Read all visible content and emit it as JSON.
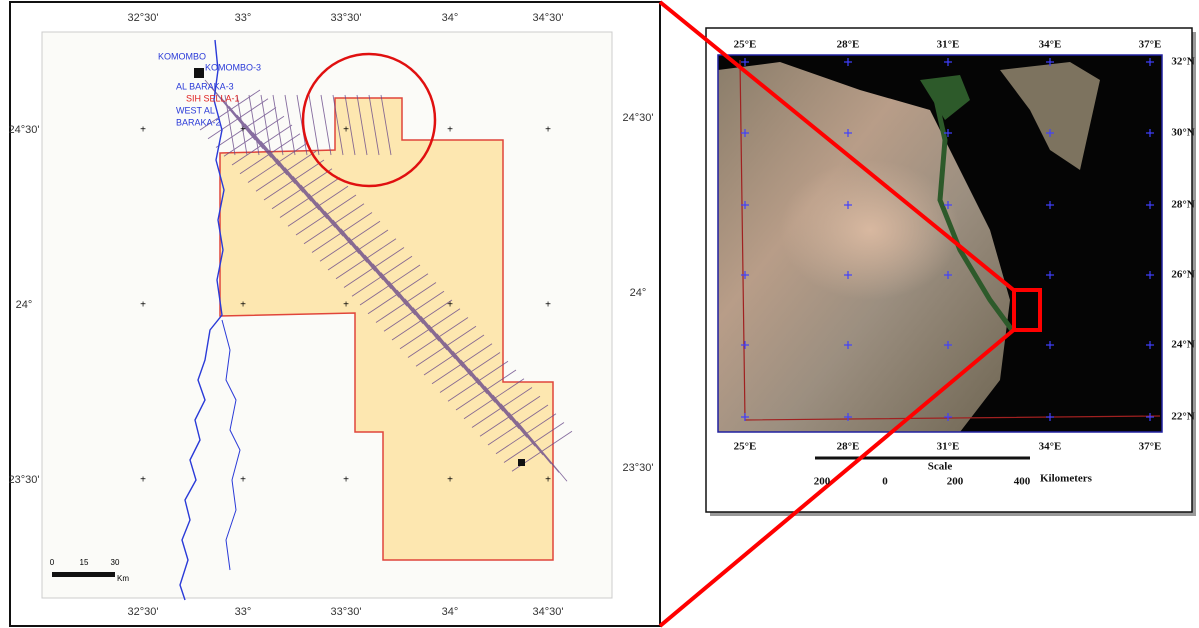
{
  "left_map": {
    "top_labels": [
      "32°30'",
      "33°",
      "33°30'",
      "34°",
      "34°30'"
    ],
    "bottom_labels": [
      "32°30'",
      "33°",
      "33°30'",
      "34°",
      "34°30'"
    ],
    "left_labels": [
      "24°30'",
      "24°",
      "23°30'"
    ],
    "right_labels": [
      "24°30'",
      "24°",
      "23°30'"
    ],
    "places": [
      {
        "label": "KOMOMBO",
        "color": "blue"
      },
      {
        "label": "KOMOMBO-3",
        "color": "blue"
      },
      {
        "label": "AL BARAKA-3",
        "color": "blue"
      },
      {
        "label": "SIH SELLA-1",
        "color": "red"
      },
      {
        "label": "WEST AL",
        "color": "blue"
      },
      {
        "label": "BARAKA-2",
        "color": "blue"
      }
    ],
    "scale": {
      "ticks": [
        "0",
        "15",
        "30"
      ],
      "unit": "Km"
    }
  },
  "right_map": {
    "top_labels": [
      "25°E",
      "28°E",
      "31°E",
      "34°E",
      "37°E"
    ],
    "bottom_labels": [
      "25°E",
      "28°E",
      "31°E",
      "34°E",
      "37°E"
    ],
    "right_labels": [
      "32°N",
      "30°N",
      "28°N",
      "26°N",
      "24°N",
      "22°N"
    ],
    "scale": {
      "title": "Scale",
      "ticks": [
        "200",
        "0",
        "200",
        "400"
      ],
      "unit": "Kilometers"
    }
  }
}
